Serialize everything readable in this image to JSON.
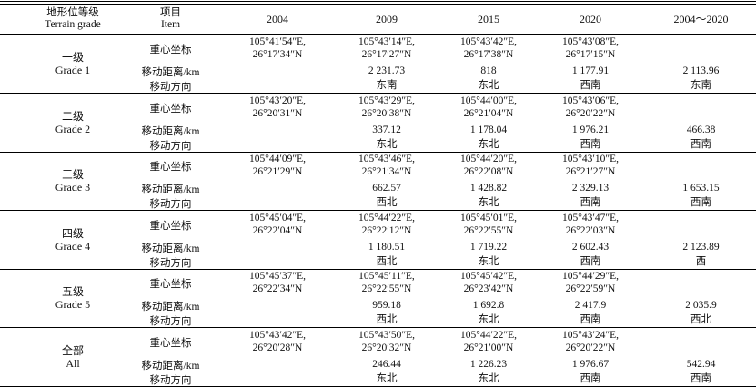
{
  "header": {
    "grade_cn": "地形位等级",
    "grade_en": "Terrain grade",
    "item_cn": "项目",
    "item_en": "Item",
    "y2004": "2004",
    "y2009": "2009",
    "y2015": "2015",
    "y2020": "2020",
    "span": "2004～2020"
  },
  "labels": {
    "coord": "重心坐标",
    "dist": "移动距离/km",
    "dir": "移动方向"
  },
  "groups": [
    {
      "cn": "一级",
      "en": "Grade 1",
      "coord": {
        "y2004": [
          "105°41′54″E,",
          "26°17′34″N"
        ],
        "y2009": [
          "105°43′14″E,",
          "26°17′27″N"
        ],
        "y2015": [
          "105°43′42″E,",
          "26°17′38″N"
        ],
        "y2020": [
          "105°43′08″E,",
          "26°17′15″N"
        ]
      },
      "dist": {
        "y2009": "2 231.73",
        "y2015": "818",
        "y2020": "1 177.91",
        "span": "2 113.96"
      },
      "dir": {
        "y2009": "东南",
        "y2015": "东北",
        "y2020": "西南",
        "span": "东南"
      }
    },
    {
      "cn": "二级",
      "en": "Grade 2",
      "coord": {
        "y2004": [
          "105°43′20″E,",
          "26°20′31″N"
        ],
        "y2009": [
          "105°43′29″E,",
          "26°20′38″N"
        ],
        "y2015": [
          "105°44′00″E,",
          "26°21′04″N"
        ],
        "y2020": [
          "105°43′06″E,",
          "26°20′22″N"
        ]
      },
      "dist": {
        "y2009": "337.12",
        "y2015": "1 178.04",
        "y2020": "1 976.21",
        "span": "466.38"
      },
      "dir": {
        "y2009": "东北",
        "y2015": "东北",
        "y2020": "西南",
        "span": "西南"
      }
    },
    {
      "cn": "三级",
      "en": "Grade 3",
      "coord": {
        "y2004": [
          "105°44′09″E,",
          "26°21′29″N"
        ],
        "y2009": [
          "105°43′46″E,",
          "26°21′34″N"
        ],
        "y2015": [
          "105°44′20″E,",
          "26°22′08″N"
        ],
        "y2020": [
          "105°43′10″E,",
          "26°21′27″N"
        ]
      },
      "dist": {
        "y2009": "662.57",
        "y2015": "1 428.82",
        "y2020": "2 329.13",
        "span": "1 653.15"
      },
      "dir": {
        "y2009": "西北",
        "y2015": "东北",
        "y2020": "西南",
        "span": "西南"
      }
    },
    {
      "cn": "四级",
      "en": "Grade 4",
      "coord": {
        "y2004": [
          "105°45′04″E,",
          "26°22′04″N"
        ],
        "y2009": [
          "105°44′22″E,",
          "26°22′12″N"
        ],
        "y2015": [
          "105°45′01″E,",
          "26°22′55″N"
        ],
        "y2020": [
          "105°43′47″E,",
          "26°22′03″N"
        ]
      },
      "dist": {
        "y2009": "1 180.51",
        "y2015": "1 719.22",
        "y2020": "2 602.43",
        "span": "2 123.89"
      },
      "dir": {
        "y2009": "西北",
        "y2015": "东北",
        "y2020": "西南",
        "span": "西"
      }
    },
    {
      "cn": "五级",
      "en": "Grade 5",
      "coord": {
        "y2004": [
          "105°45′37″E,",
          "26°22′34″N"
        ],
        "y2009": [
          "105°45′11″E,",
          "26°22′55″N"
        ],
        "y2015": [
          "105°45′42″E,",
          "26°23′42″N"
        ],
        "y2020": [
          "105°44′29″E,",
          "26°22′59″N"
        ]
      },
      "dist": {
        "y2009": "959.18",
        "y2015": "1 692.8",
        "y2020": "2 417.9",
        "span": "2 035.9"
      },
      "dir": {
        "y2009": "西北",
        "y2015": "东北",
        "y2020": "西南",
        "span": "西北"
      }
    },
    {
      "cn": "全部",
      "en": "All",
      "coord": {
        "y2004": [
          "105°43′42″E,",
          "26°20′28″N"
        ],
        "y2009": [
          "105°43′50″E,",
          "26°20′32″N"
        ],
        "y2015": [
          "105°44′22″E,",
          "26°21′00″N"
        ],
        "y2020": [
          "105°43′24″E,",
          "26°20′22″N"
        ]
      },
      "dist": {
        "y2009": "246.44",
        "y2015": "1 226.23",
        "y2020": "1 976.67",
        "span": "542.94"
      },
      "dir": {
        "y2009": "东北",
        "y2015": "东北",
        "y2020": "西南",
        "span": "西南"
      }
    }
  ]
}
